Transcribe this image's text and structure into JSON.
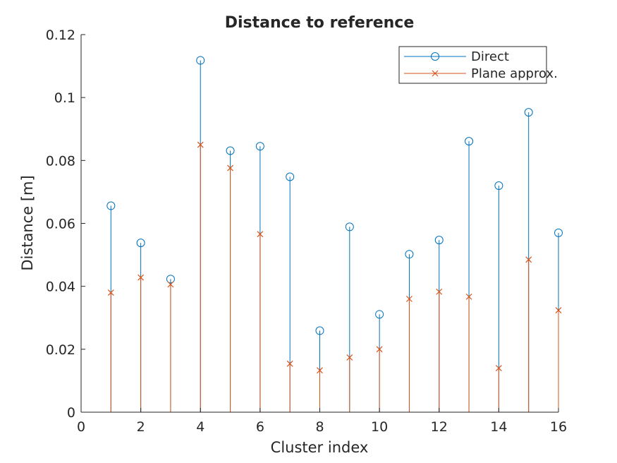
{
  "chart_data": {
    "type": "stem",
    "title": "Distance to reference",
    "xlabel": "Cluster index",
    "ylabel": "Distance [m]",
    "xlim": [
      0,
      16
    ],
    "ylim": [
      0,
      0.12
    ],
    "x_ticks": [
      "0",
      "2",
      "4",
      "6",
      "8",
      "10",
      "12",
      "14",
      "16"
    ],
    "y_ticks": [
      "0",
      "0.02",
      "0.04",
      "0.06",
      "0.08",
      "0.1",
      "0.12"
    ],
    "grid": false,
    "legend_position": "top-right",
    "x": [
      1,
      2,
      3,
      4,
      5,
      6,
      7,
      8,
      9,
      10,
      11,
      12,
      13,
      14,
      15,
      16
    ],
    "series": [
      {
        "name": "Direct",
        "marker": "circle",
        "color": "#0072BD",
        "values": [
          0.0656,
          0.0538,
          0.0423,
          0.1118,
          0.0831,
          0.0845,
          0.0748,
          0.0259,
          0.0589,
          0.0311,
          0.0502,
          0.0547,
          0.0861,
          0.072,
          0.0953,
          0.057
        ]
      },
      {
        "name": "Plane approx.",
        "marker": "x",
        "color": "#D95319",
        "values": [
          0.038,
          0.0428,
          0.0406,
          0.085,
          0.0776,
          0.0566,
          0.0154,
          0.0133,
          0.0174,
          0.02,
          0.036,
          0.0383,
          0.0367,
          0.014,
          0.0485,
          0.0324
        ]
      }
    ]
  }
}
